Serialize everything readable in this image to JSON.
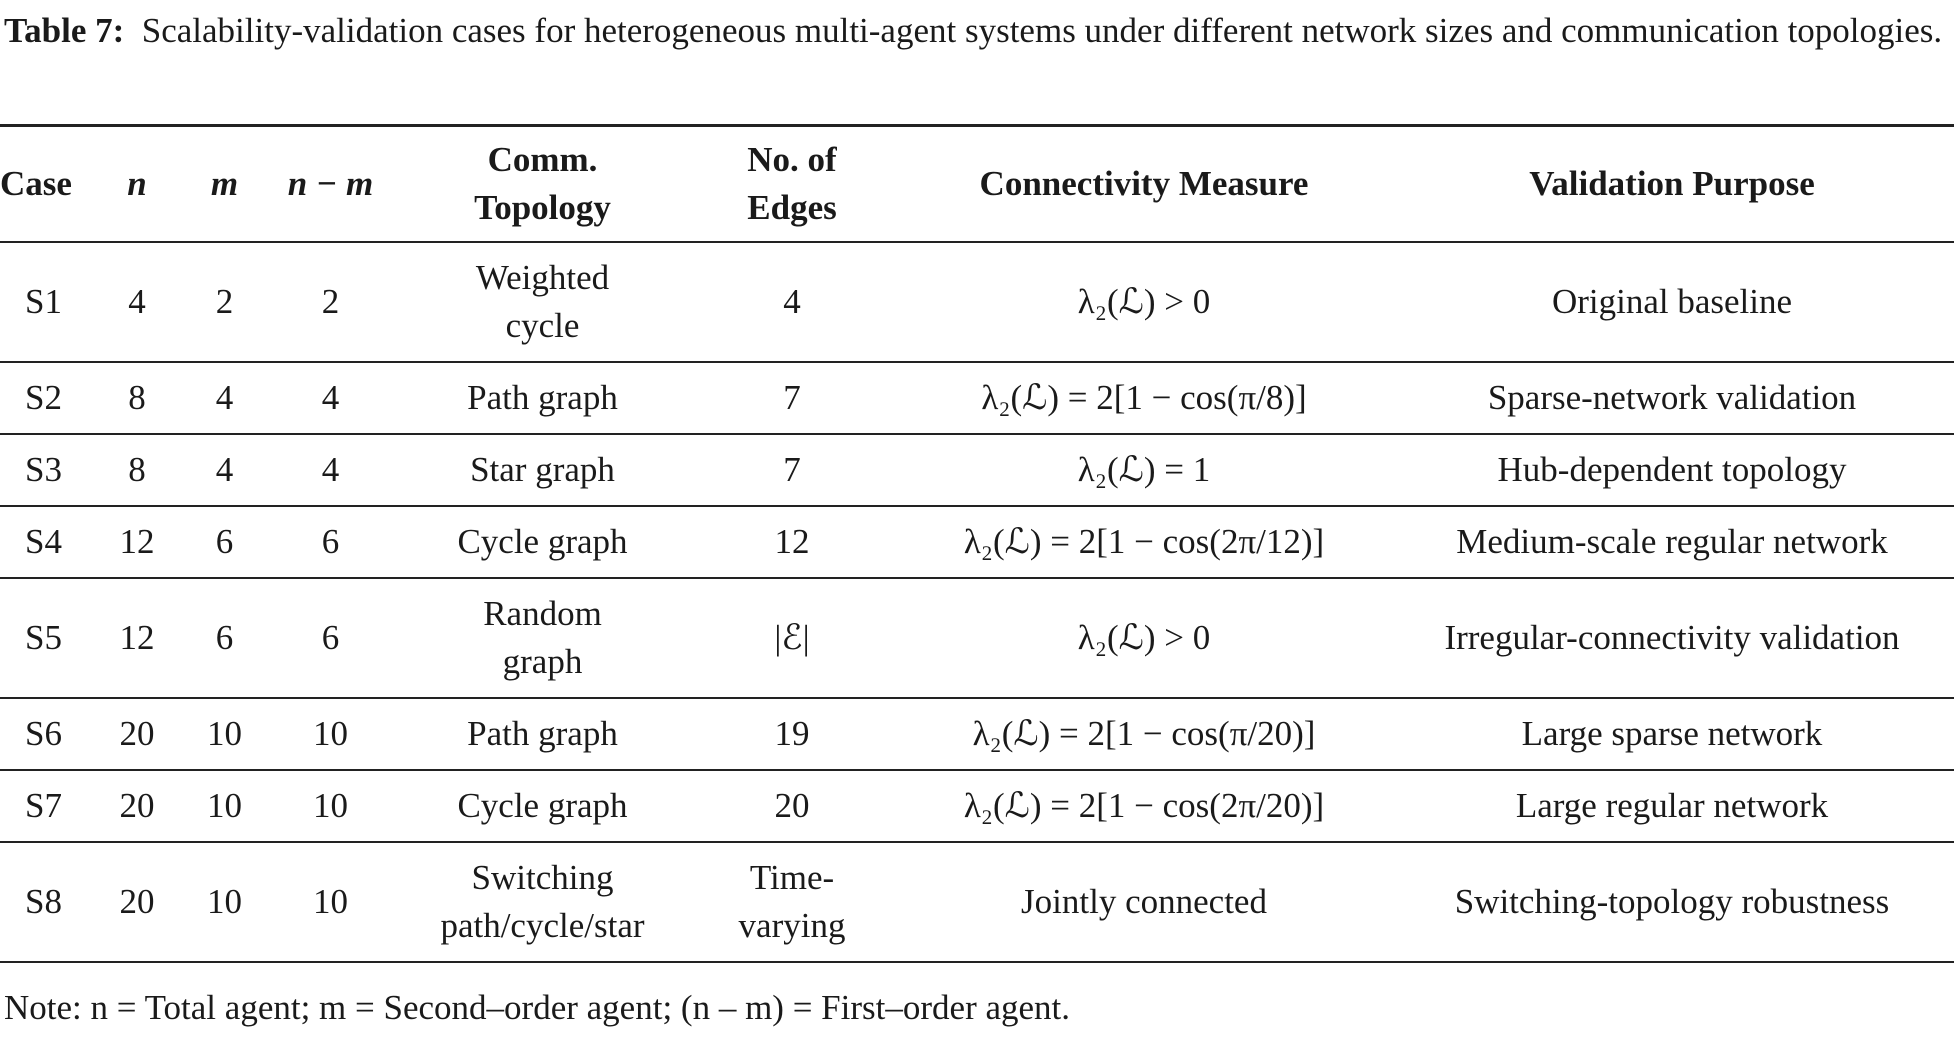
{
  "caption": {
    "label": "Table 7:",
    "text": "Scalability-validation cases for heterogeneous multi-agent systems under different network sizes and communication topologies."
  },
  "table": {
    "headers": [
      "Case",
      "n",
      "m",
      "n − m",
      "Comm.\nTopology",
      "No. of\nEdges",
      "Connectivity Measure",
      "Validation Purpose"
    ],
    "rows": [
      [
        "S1",
        "4",
        "2",
        "2",
        "Weighted\ncycle",
        "4",
        "λ₂(ℒ) > 0",
        "Original baseline"
      ],
      [
        "S2",
        "8",
        "4",
        "4",
        "Path graph",
        "7",
        "λ₂(ℒ) = 2[1 − cos(π/8)]",
        "Sparse-network validation"
      ],
      [
        "S3",
        "8",
        "4",
        "4",
        "Star graph",
        "7",
        "λ₂(ℒ) = 1",
        "Hub-dependent topology"
      ],
      [
        "S4",
        "12",
        "6",
        "6",
        "Cycle graph",
        "12",
        "λ₂(ℒ) = 2[1 − cos(2π/12)]",
        "Medium-scale regular network"
      ],
      [
        "S5",
        "12",
        "6",
        "6",
        "Random\ngraph",
        "|ℰ|",
        "λ₂(ℒ) > 0",
        "Irregular-connectivity validation"
      ],
      [
        "S6",
        "20",
        "10",
        "10",
        "Path graph",
        "19",
        "λ₂(ℒ) = 2[1 − cos(π/20)]",
        "Large sparse network"
      ],
      [
        "S7",
        "20",
        "10",
        "10",
        "Cycle graph",
        "20",
        "λ₂(ℒ) = 2[1 − cos(2π/20)]",
        "Large regular network"
      ],
      [
        "S8",
        "20",
        "10",
        "10",
        "Switching\npath/cycle/star",
        "Time-\nvarying",
        "Jointly connected",
        "Switching-topology robustness"
      ]
    ]
  },
  "note": "Note: n = Total agent; m = Second–order agent; (n – m) = First–order agent."
}
